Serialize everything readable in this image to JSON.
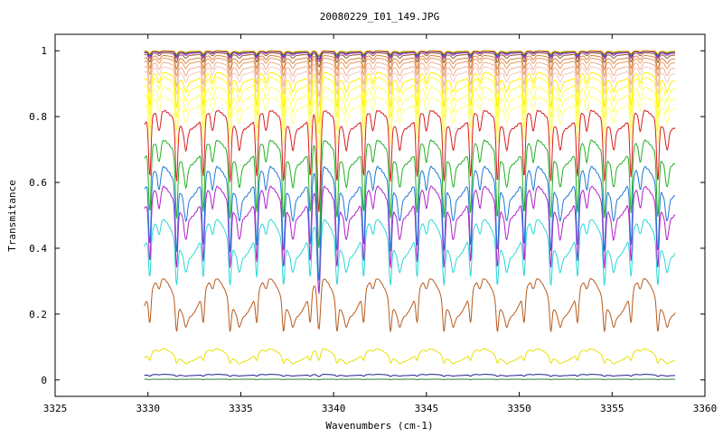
{
  "chart_data": {
    "type": "line",
    "title": "20080229_I01_149.JPG",
    "xlabel": "Wavenumbers (cm-1)",
    "ylabel": "Transmitance",
    "xlim": [
      3325,
      3360
    ],
    "ylim": [
      -0.05,
      1.05
    ],
    "x_ticks": [
      3325,
      3330,
      3335,
      3340,
      3345,
      3350,
      3355,
      3360
    ],
    "y_ticks": [
      0,
      0.2,
      0.4,
      0.6,
      0.8,
      1
    ],
    "x_tick_labels": [
      "3325",
      "3330",
      "3335",
      "3340",
      "3345",
      "3350",
      "3355",
      "3360"
    ],
    "y_tick_labels": [
      "0",
      "0.2",
      "0.4",
      "0.6",
      "0.8",
      "1"
    ],
    "x_range": [
      3329.8,
      3358.4
    ],
    "legend": "none",
    "grid": false,
    "series": [
      {
        "color": "#2e7d32",
        "baseline": 0.002,
        "dip": 0.001,
        "broad": 0.0
      },
      {
        "color": "#1f1f8f",
        "baseline": 0.015,
        "dip": 0.004,
        "broad": 0.002
      },
      {
        "color": "#e8e000",
        "baseline": 0.075,
        "dip": 0.02,
        "broad": 0.02
      },
      {
        "color": "#b85a1e",
        "baseline": 0.25,
        "dip": 0.09,
        "broad": 0.06
      },
      {
        "color": "#28d8d8",
        "baseline": 0.43,
        "dip": 0.13,
        "broad": 0.06
      },
      {
        "color": "#b020c8",
        "baseline": 0.54,
        "dip": 0.19,
        "broad": 0.05
      },
      {
        "color": "#1f78d8",
        "baseline": 0.6,
        "dip": 0.2,
        "broad": 0.05
      },
      {
        "color": "#22b022",
        "baseline": 0.69,
        "dip": 0.19,
        "broad": 0.04
      },
      {
        "color": "#d81e1e",
        "baseline": 0.79,
        "dip": 0.18,
        "broad": 0.03
      },
      {
        "color": "#ffff80",
        "baseline": 0.84,
        "dip": 0.12,
        "broad": 0.02
      },
      {
        "color": "#ffff60",
        "baseline": 0.87,
        "dip": 0.11,
        "broad": 0.02
      },
      {
        "color": "#ffff40",
        "baseline": 0.9,
        "dip": 0.1,
        "broad": 0.02
      },
      {
        "color": "#ffee00",
        "baseline": 0.92,
        "dip": 0.09,
        "broad": 0.015
      },
      {
        "color": "#f5c8c0",
        "baseline": 0.94,
        "dip": 0.07,
        "broad": 0.012
      },
      {
        "color": "#f0b090",
        "baseline": 0.955,
        "dip": 0.06,
        "broad": 0.01
      },
      {
        "color": "#e89a60",
        "baseline": 0.97,
        "dip": 0.045,
        "broad": 0.008
      },
      {
        "color": "#d88040",
        "baseline": 0.98,
        "dip": 0.035,
        "broad": 0.006
      },
      {
        "color": "#8a5a2a",
        "baseline": 0.99,
        "dip": 0.025,
        "broad": 0.004
      },
      {
        "color": "#c020c0",
        "baseline": 0.995,
        "dip": 0.018,
        "broad": 0.003
      },
      {
        "color": "#3030c0",
        "baseline": 0.997,
        "dip": 0.014,
        "broad": 0.002
      },
      {
        "color": "#20a020",
        "baseline": 0.998,
        "dip": 0.01,
        "broad": 0.002
      },
      {
        "color": "#ff9000",
        "baseline": 0.999,
        "dip": 0.008,
        "broad": 0.001
      }
    ]
  }
}
